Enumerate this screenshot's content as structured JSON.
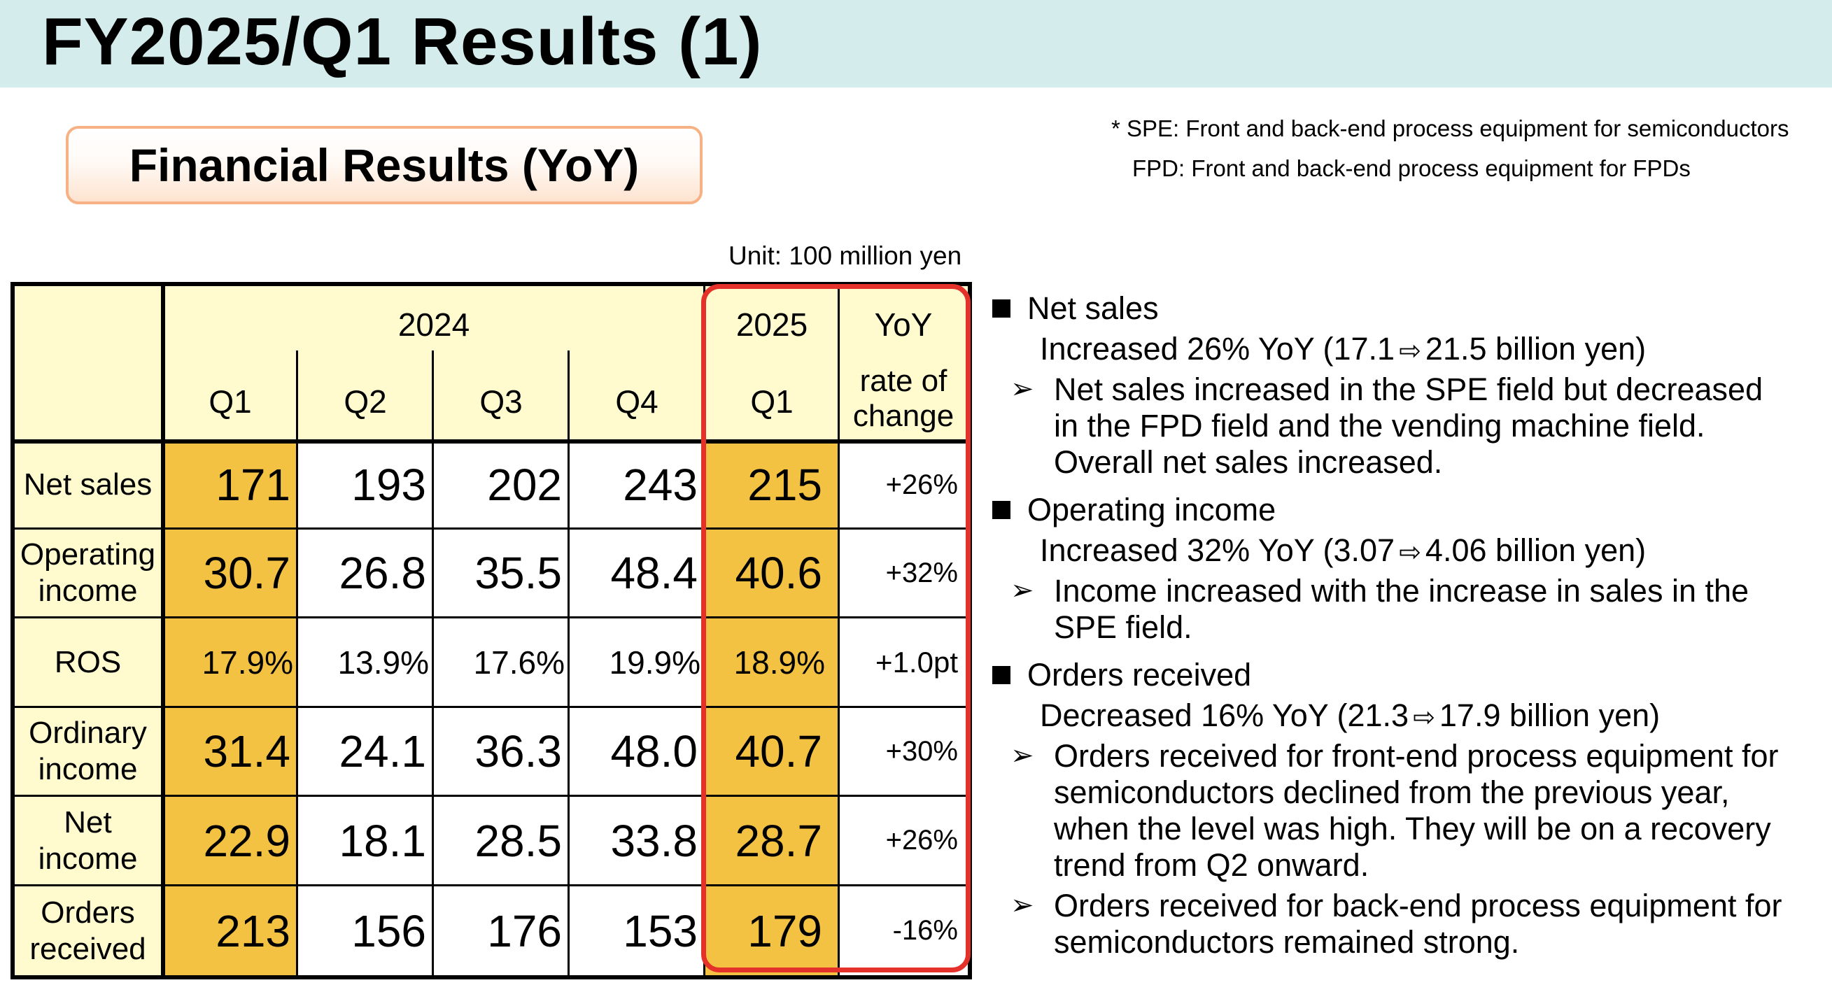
{
  "header": {
    "title": "FY2025/Q1 Results (1)"
  },
  "badge": {
    "label": "Financial Results (YoY)"
  },
  "notes": {
    "spe": "* SPE: Front and back-end process equipment for semiconductors",
    "fpd": "FPD: Front and back-end process equipment for FPDs"
  },
  "unit": "Unit: 100 million yen",
  "table": {
    "year_2024": "2024",
    "year_2025": "2025",
    "yoy_header": "YoY",
    "yoy_sub": "rate of change",
    "quarters_2024": [
      "Q1",
      "Q2",
      "Q3",
      "Q4"
    ],
    "quarter_2025": "Q1",
    "rows": [
      {
        "label": "Net sales",
        "values": [
          "171",
          "193",
          "202",
          "243"
        ],
        "q1_2025": "215",
        "yoy": "+26%"
      },
      {
        "label": "Operating income",
        "values": [
          "30.7",
          "26.8",
          "35.5",
          "48.4"
        ],
        "q1_2025": "40.6",
        "yoy": "+32%"
      },
      {
        "label": "ROS",
        "values": [
          "17.9%",
          "13.9%",
          "17.6%",
          "19.9%"
        ],
        "q1_2025": "18.9%",
        "yoy": "+1.0pt"
      },
      {
        "label": "Ordinary income",
        "values": [
          "31.4",
          "24.1",
          "36.3",
          "48.0"
        ],
        "q1_2025": "40.7",
        "yoy": "+30%"
      },
      {
        "label": "Net income",
        "values": [
          "22.9",
          "18.1",
          "28.5",
          "33.8"
        ],
        "q1_2025": "28.7",
        "yoy": "+26%"
      },
      {
        "label": "Orders received",
        "values": [
          "213",
          "156",
          "176",
          "153"
        ],
        "q1_2025": "179",
        "yoy": "-16%"
      }
    ]
  },
  "bullets": {
    "net_sales": {
      "title": "Net sales",
      "summary_a": "Increased 26% YoY (17.1",
      "summary_b": "21.5 billion yen)",
      "detail": [
        "Net sales increased in the SPE field but decreased",
        "in the FPD field and the vending machine field.",
        "Overall net sales increased."
      ]
    },
    "operating_income": {
      "title": "Operating income",
      "summary_a": "Increased 32% YoY (3.07",
      "summary_b": "4.06 billion yen)",
      "detail": [
        "Income increased with the increase in sales in the",
        "SPE field."
      ]
    },
    "orders_received": {
      "title": "Orders received",
      "summary_a": "Decreased 16% YoY (21.3",
      "summary_b": "17.9 billion yen)",
      "detail1": [
        "Orders received for front-end process equipment for",
        "semiconductors declined from the previous year,",
        "when the level was high. They will be on a recovery",
        "trend from Q2 onward."
      ],
      "detail2": [
        "Orders received for back-end process equipment for",
        "semiconductors remained strong."
      ]
    }
  },
  "colors": {
    "header_bg": "#d5ecec",
    "highlight": "#f4c242",
    "header_cells": "#fffbcf",
    "red_frame": "#e4322b"
  }
}
